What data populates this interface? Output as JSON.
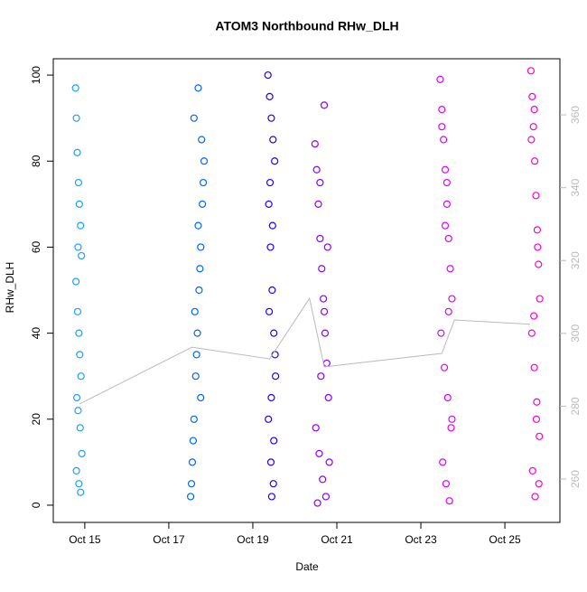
{
  "chart_data": {
    "type": "scatter",
    "title": "ATOM3 Northbound RHw_DLH",
    "x_label": "Date",
    "y_label": "RHw_DLH",
    "xlim": [
      14.25,
      26.31
    ],
    "xticks": [
      {
        "value": 15,
        "label": "Oct 15"
      },
      {
        "value": 17,
        "label": "Oct 17"
      },
      {
        "value": 19,
        "label": "Oct 19"
      },
      {
        "value": 21,
        "label": "Oct 21"
      },
      {
        "value": 23,
        "label": "Oct 23"
      },
      {
        "value": 25,
        "label": "Oct 25"
      }
    ],
    "ylim": [
      -4,
      103.8
    ],
    "yticks": [
      0,
      20,
      40,
      60,
      80,
      100
    ],
    "y2lim": [
      248.1,
      375.4
    ],
    "y2ticks": [
      260,
      280,
      300,
      320,
      340,
      360
    ],
    "series": [
      {
        "color": "#1a9fff",
        "x": [
          14.78,
          14.8,
          14.82,
          14.85,
          14.87,
          14.9,
          14.92,
          14.79,
          14.83,
          14.86,
          14.88,
          14.91,
          14.81,
          14.84,
          14.89,
          14.93,
          14.8,
          14.86,
          14.9,
          14.84
        ],
        "values": [
          97,
          90,
          82,
          75,
          70,
          65,
          58,
          52,
          45,
          40,
          35,
          30,
          25,
          22,
          18,
          12,
          8,
          5,
          3,
          60
        ]
      },
      {
        "color": "#0066ff",
        "x": [
          17.52,
          17.56,
          17.6,
          17.64,
          17.68,
          17.72,
          17.76,
          17.8,
          17.84,
          17.54,
          17.62,
          17.7,
          17.78,
          17.58,
          17.66,
          17.74,
          17.82,
          17.6,
          17.7,
          17.76
        ],
        "values": [
          2,
          10,
          20,
          30,
          40,
          50,
          60,
          70,
          80,
          5,
          45,
          65,
          85,
          15,
          35,
          55,
          75,
          90,
          97,
          25
        ]
      },
      {
        "color": "#2200ff",
        "x": [
          19.36,
          19.4,
          19.44,
          19.48,
          19.52,
          19.38,
          19.42,
          19.46,
          19.5,
          19.54,
          19.37,
          19.43,
          19.49,
          19.45,
          19.41,
          19.47,
          19.39,
          19.53,
          19.44,
          19.5
        ],
        "values": [
          100,
          95,
          90,
          85,
          80,
          70,
          60,
          50,
          40,
          30,
          20,
          10,
          5,
          2,
          75,
          65,
          45,
          35,
          25,
          15
        ]
      },
      {
        "color": "#8800ff",
        "x": [
          20.48,
          20.52,
          20.56,
          20.6,
          20.64,
          20.68,
          20.72,
          20.76,
          20.8,
          20.5,
          20.58,
          20.66,
          20.74,
          20.54,
          20.62,
          20.7,
          20.78,
          20.6,
          20.7,
          20.82
        ],
        "values": [
          84,
          78,
          70,
          62,
          55,
          48,
          40,
          33,
          25,
          18,
          12,
          6,
          2,
          0.5,
          30,
          45,
          60,
          75,
          93,
          10
        ]
      },
      {
        "color": "#dd00ff",
        "x": [
          23.46,
          23.5,
          23.54,
          23.58,
          23.62,
          23.66,
          23.7,
          23.74,
          23.48,
          23.56,
          23.64,
          23.72,
          23.52,
          23.6,
          23.68,
          23.5,
          23.58,
          23.66,
          23.74,
          23.62
        ],
        "values": [
          99,
          92,
          85,
          78,
          70,
          62,
          55,
          48,
          40,
          32,
          25,
          18,
          10,
          5,
          1,
          88,
          65,
          45,
          20,
          75
        ]
      },
      {
        "color": "#ff00cc",
        "x": [
          25.62,
          25.65,
          25.68,
          25.71,
          25.74,
          25.77,
          25.8,
          25.83,
          25.64,
          25.7,
          25.76,
          25.82,
          25.66,
          25.72,
          25.78,
          25.63,
          25.69,
          25.75,
          25.81,
          25.7
        ],
        "values": [
          101,
          95,
          88,
          80,
          72,
          64,
          56,
          48,
          40,
          32,
          24,
          16,
          8,
          2,
          60,
          85,
          44,
          20,
          5,
          92
        ]
      },
      {
        "color": "#bbbbbb",
        "axis": "y2",
        "line": true,
        "x": [
          14.87,
          17.55,
          19.4,
          20.35,
          20.7,
          23.5,
          23.8,
          25.6
        ],
        "values": [
          280.6,
          296.2,
          293.0,
          309.6,
          290.8,
          294.5,
          303.7,
          302.5
        ]
      }
    ]
  }
}
